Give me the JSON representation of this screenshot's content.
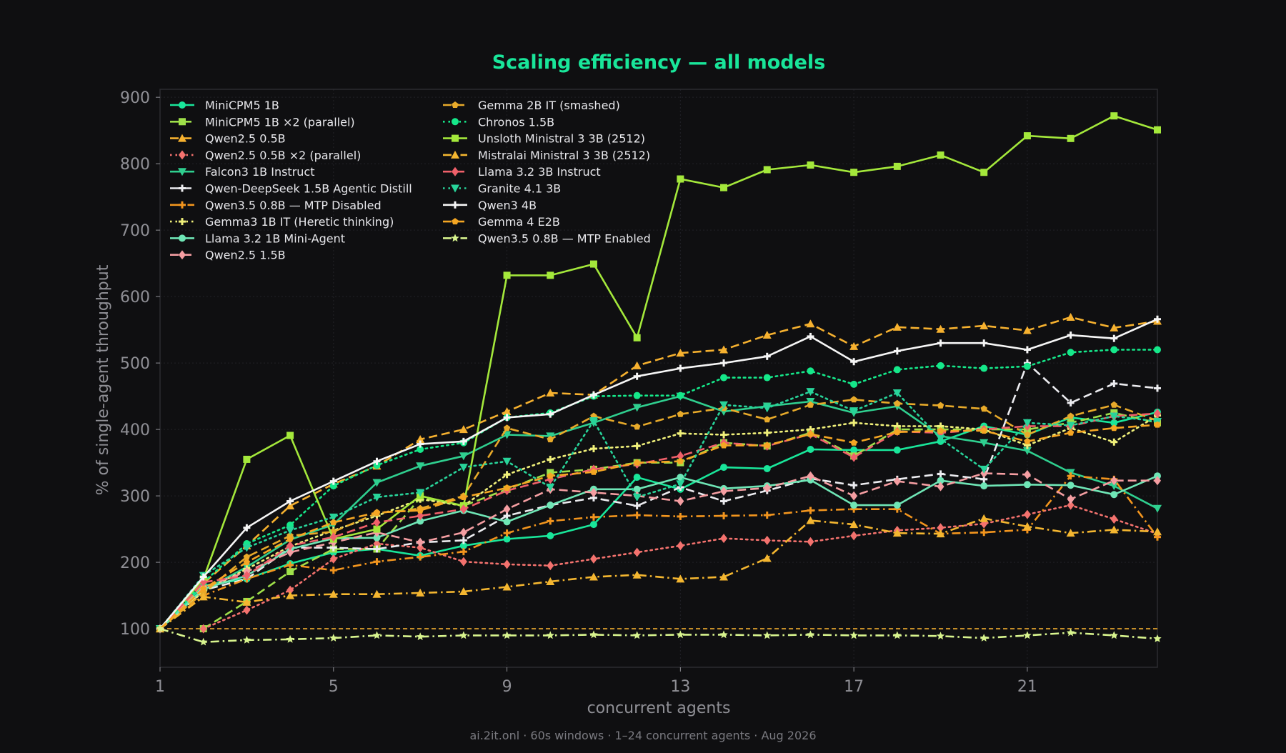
{
  "title": "Scaling efficiency — all models",
  "footer": "ai.2it.onl · 60s windows · 1–24 concurrent agents · Aug 2026",
  "colors": {
    "background": "#0f0f11",
    "title": "#19e69a",
    "axis_text": "#8f8f95",
    "grid": "#26262b",
    "frame": "#2c2c31",
    "baseline": "#f6b12f"
  },
  "chart_data": {
    "type": "line",
    "title": "Scaling efficiency — all models",
    "xlabel": "concurrent agents",
    "ylabel": "% of single-agent throughput",
    "xlim": [
      1,
      24
    ],
    "ylim": [
      42,
      912
    ],
    "xticks": [
      1,
      5,
      9,
      13,
      17,
      21
    ],
    "yticks": [
      100,
      200,
      300,
      400,
      500,
      600,
      700,
      800,
      900
    ],
    "grid": true,
    "legend_position": "top-left, two columns",
    "reference_line": {
      "y": 100,
      "style": "dashed",
      "color": "#f6b12f"
    },
    "x": [
      1,
      2,
      3,
      4,
      5,
      6,
      7,
      8,
      9,
      10,
      11,
      12,
      13,
      14,
      15,
      16,
      17,
      18,
      19,
      20,
      21,
      22,
      23,
      24
    ],
    "series": [
      {
        "name": "MiniCPM5 1B",
        "color": "#19e69a",
        "dash": "solid",
        "marker": "circle",
        "values": [
          100,
          165,
          175,
          198,
          215,
          220,
          210,
          225,
          235,
          240,
          257,
          328,
          310,
          343,
          341,
          370,
          369,
          369,
          382,
          405,
          392,
          418,
          410,
          426
        ]
      },
      {
        "name": "MiniCPM5 1B ×2 (parallel)",
        "color": "#9fe04a",
        "dash": "dashed",
        "marker": "square",
        "values": [
          null,
          100,
          141,
          186,
          220,
          220,
          297,
          285,
          310,
          335,
          340,
          350,
          350,
          380,
          375,
          395,
          360,
          400,
          400,
          400,
          400,
          410,
          425,
          410
        ]
      },
      {
        "name": "Qwen2.5 0.5B",
        "color": "#f6b12f",
        "dash": "dashed",
        "marker": "triangle-up",
        "values": [
          100,
          168,
          225,
          285,
          318,
          345,
          385,
          400,
          427,
          455,
          452,
          496,
          515,
          520,
          542,
          559,
          525,
          554,
          551,
          556,
          549,
          569,
          553,
          563
        ]
      },
      {
        "name": "Qwen2.5 0.5B ×2 (parallel)",
        "color": "#f4726e",
        "dash": "dotted",
        "marker": "diamond",
        "values": [
          null,
          100,
          128,
          158,
          205,
          228,
          222,
          201,
          197,
          195,
          205,
          215,
          225,
          236,
          233,
          231,
          240,
          248,
          252,
          258,
          272,
          286,
          265,
          243
        ]
      },
      {
        "name": "Falcon3 1B Instruct",
        "color": "#2fcf8f",
        "dash": "solid",
        "marker": "triangle-down",
        "values": [
          100,
          158,
          193,
          234,
          257,
          320,
          345,
          360,
          392,
          390,
          410,
          433,
          450,
          427,
          435,
          442,
          425,
          435,
          390,
          380,
          368,
          335,
          315,
          281
        ]
      },
      {
        "name": "Qwen-DeepSeek 1.5B Agentic Distill",
        "color": "#ececf0",
        "dash": "dashed",
        "marker": "plus",
        "values": [
          100,
          158,
          175,
          222,
          222,
          220,
          230,
          233,
          270,
          286,
          297,
          285,
          313,
          292,
          308,
          326,
          316,
          325,
          333,
          325,
          500,
          440,
          469,
          462
        ]
      },
      {
        "name": "Qwen3.5 0.8B — MTP Disabled",
        "color": "#f2951e",
        "dash": "dashdot",
        "marker": "plus",
        "values": [
          100,
          150,
          175,
          196,
          188,
          201,
          208,
          216,
          244,
          262,
          268,
          271,
          269,
          270,
          271,
          278,
          280,
          280,
          243,
          245,
          249,
          330,
          325,
          238
        ]
      },
      {
        "name": "Gemma3 1B IT (Heretic thinking)",
        "color": "#f0f07a",
        "dash": "dotted",
        "marker": "plus",
        "values": [
          100,
          156,
          190,
          224,
          248,
          270,
          295,
          285,
          332,
          355,
          371,
          375,
          394,
          392,
          395,
          400,
          410,
          405,
          405,
          400,
          376,
          402,
          381,
          421
        ]
      },
      {
        "name": "Llama 3.2 1B Mini-Agent",
        "color": "#6fe6b6",
        "dash": "solid",
        "marker": "circle",
        "values": [
          100,
          160,
          180,
          220,
          236,
          237,
          262,
          278,
          261,
          286,
          310,
          310,
          328,
          311,
          315,
          324,
          286,
          286,
          323,
          315,
          317,
          316,
          302,
          330
        ]
      },
      {
        "name": "Qwen2.5 1.5B",
        "color": "#f59ea2",
        "dash": "dashed",
        "marker": "diamond",
        "values": [
          100,
          162,
          186,
          215,
          230,
          245,
          230,
          245,
          280,
          310,
          305,
          300,
          292,
          307,
          312,
          330,
          300,
          322,
          314,
          334,
          332,
          295,
          323,
          323
        ]
      },
      {
        "name": "Gemma 2B IT (smashed)",
        "color": "#e8aa2a",
        "dash": "dashed",
        "marker": "pentagon",
        "values": [
          100,
          154,
          208,
          240,
          246,
          274,
          281,
          300,
          402,
          385,
          420,
          404,
          423,
          432,
          415,
          437,
          445,
          439,
          436,
          431,
          392,
          420,
          437,
          413
        ]
      },
      {
        "name": "Chronos 1.5B",
        "color": "#15e88a",
        "dash": "dotted",
        "marker": "circle",
        "values": [
          100,
          170,
          228,
          256,
          315,
          346,
          370,
          380,
          418,
          425,
          450,
          451,
          451,
          478,
          478,
          488,
          468,
          490,
          496,
          492,
          495,
          516,
          520,
          520
        ]
      },
      {
        "name": "Unsloth Ministral 3 3B (2512)",
        "color": "#a4e83b",
        "dash": "solid",
        "marker": "square",
        "values": [
          100,
          175,
          355,
          391,
          235,
          250,
          300,
          285,
          632,
          632,
          649,
          538,
          777,
          764,
          791,
          798,
          787,
          796,
          813,
          787,
          842,
          838,
          872,
          851
        ]
      },
      {
        "name": "Mistralai Ministral 3 3B (2512)",
        "color": "#f4b630",
        "dash": "dashdot",
        "marker": "triangle-up",
        "values": [
          100,
          148,
          140,
          150,
          152,
          152,
          154,
          156,
          163,
          171,
          178,
          181,
          175,
          178,
          206,
          263,
          257,
          244,
          243,
          266,
          254,
          244,
          249,
          246
        ]
      },
      {
        "name": "Llama 3.2 3B Instruct",
        "color": "#f0606a",
        "dash": "dashed",
        "marker": "diamond",
        "values": [
          100,
          170,
          180,
          225,
          238,
          260,
          270,
          280,
          308,
          325,
          340,
          348,
          360,
          380,
          375,
          393,
          358,
          397,
          395,
          400,
          405,
          405,
          420,
          424
        ]
      },
      {
        "name": "Granite 4.1 3B",
        "color": "#28d49a",
        "dash": "dotted",
        "marker": "triangle-down",
        "values": [
          100,
          180,
          222,
          248,
          268,
          298,
          305,
          343,
          352,
          313,
          413,
          298,
          318,
          437,
          432,
          457,
          428,
          455,
          386,
          340,
          410,
          406,
          420,
          412
        ]
      },
      {
        "name": "Qwen3 4B",
        "color": "#f6f6f6",
        "dash": "solid",
        "marker": "plus",
        "values": [
          100,
          178,
          252,
          292,
          322,
          352,
          378,
          382,
          418,
          423,
          452,
          480,
          492,
          500,
          510,
          540,
          502,
          518,
          530,
          530,
          520,
          542,
          537,
          566
        ]
      },
      {
        "name": "Gemma 4 E2B",
        "color": "#f5a623",
        "dash": "dashed",
        "marker": "pentagon",
        "values": [
          100,
          160,
          200,
          235,
          260,
          275,
          278,
          298,
          312,
          330,
          336,
          350,
          352,
          376,
          376,
          393,
          380,
          396,
          398,
          398,
          382,
          395,
          402,
          407
        ]
      },
      {
        "name": "Qwen3.5 0.8B — MTP Enabled",
        "color": "#d8f48e",
        "dash": "dashdot",
        "marker": "star",
        "values": [
          100,
          80,
          83,
          84,
          86,
          90,
          88,
          90,
          90,
          90,
          91,
          90,
          91,
          91,
          90,
          91,
          90,
          90,
          89,
          86,
          90,
          94,
          90,
          85
        ]
      }
    ]
  }
}
